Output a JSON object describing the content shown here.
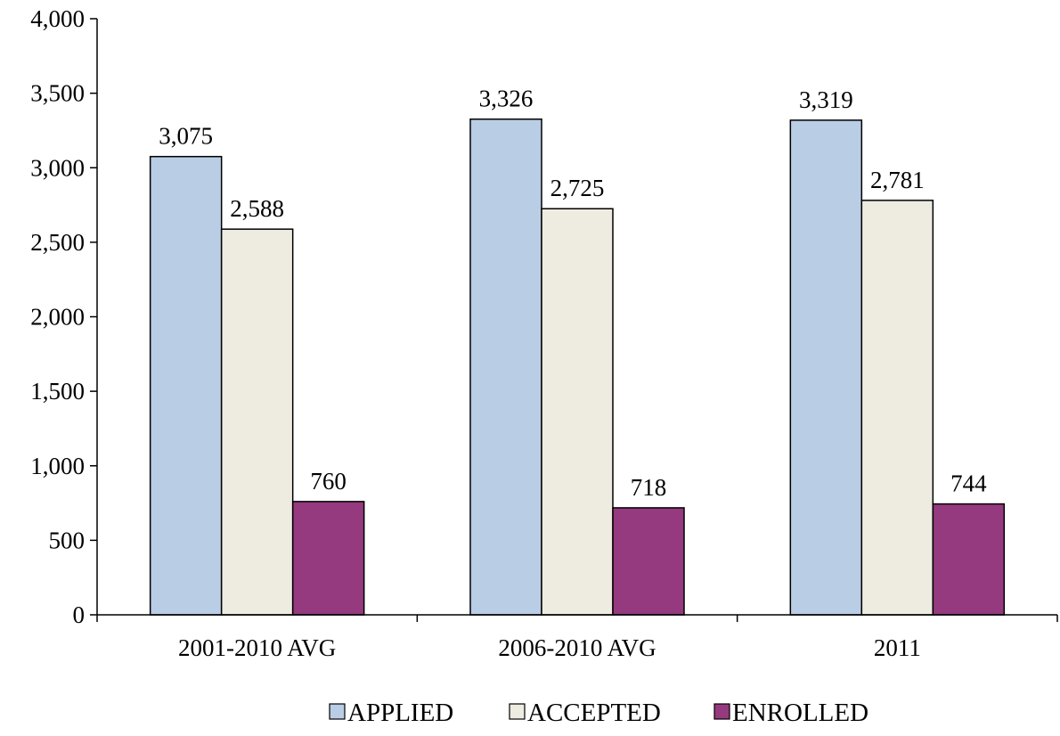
{
  "chart_data": {
    "type": "bar",
    "title": "",
    "xlabel": "",
    "ylabel": "",
    "categories": [
      "2001-2010 AVG",
      "2006-2010 AVG",
      "2011"
    ],
    "series": [
      {
        "name": "APPLIED",
        "values": [
          3075,
          3326,
          3319
        ],
        "color": "#B9CDE5"
      },
      {
        "name": "ACCEPTED",
        "values": [
          2588,
          2725,
          2781
        ],
        "color": "#EEECE1"
      },
      {
        "name": "ENROLLED",
        "values": [
          760,
          718,
          744
        ],
        "color": "#953A7E"
      }
    ],
    "data_labels": [
      [
        "3,075",
        "3,326",
        "3,319"
      ],
      [
        "2,588",
        "2,725",
        "2,781"
      ],
      [
        "760",
        "718",
        "744"
      ]
    ],
    "ylim": [
      0,
      4000
    ],
    "yticks": [
      0,
      500,
      1000,
      1500,
      2000,
      2500,
      3000,
      3500,
      4000
    ],
    "ytick_labels": [
      "0",
      "500",
      "1,000",
      "1,500",
      "2,000",
      "2,500",
      "3,000",
      "3,500",
      "4,000"
    ],
    "grid": false,
    "legend": {
      "position": "bottom",
      "entries": [
        "APPLIED",
        "ACCEPTED",
        "ENROLLED"
      ]
    }
  }
}
